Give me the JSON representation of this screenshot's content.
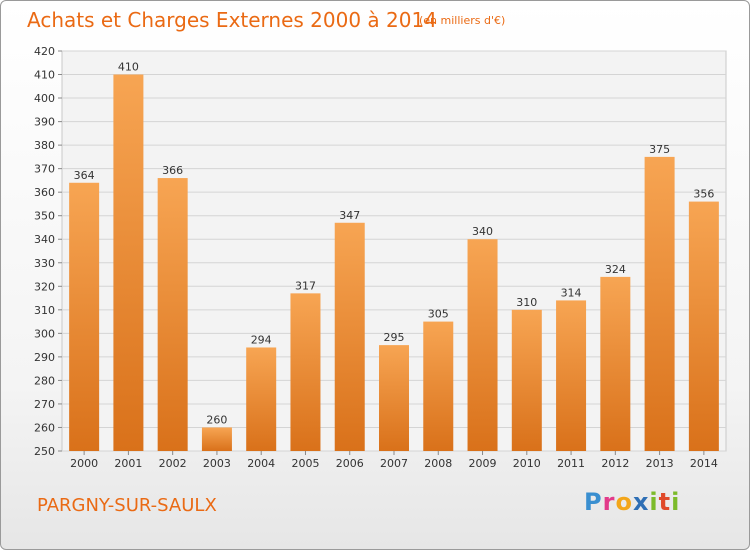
{
  "header": {
    "title": "Achats et Charges Externes 2000 à 2014",
    "subtitle": "(en milliers d'€)"
  },
  "footer": {
    "commune": "PARGNY-SUR-SAULX",
    "logo": {
      "letters": [
        "P",
        "r",
        "o",
        "x",
        "i",
        "t",
        "i"
      ]
    }
  },
  "colors": {
    "accent": "#ea6a14",
    "bar_top": "#f7a553",
    "bar_bottom": "#d9711a",
    "logo_letters": [
      "#3a8fd0",
      "#e23b8a",
      "#f3a61a",
      "#2f6fb5",
      "#7cbb2a",
      "#e04a2a",
      "#7cbb2a"
    ]
  },
  "chart_data": {
    "type": "bar",
    "categories": [
      "2000",
      "2001",
      "2002",
      "2003",
      "2004",
      "2005",
      "2006",
      "2007",
      "2008",
      "2009",
      "2010",
      "2011",
      "2012",
      "2013",
      "2014"
    ],
    "values": [
      364,
      410,
      366,
      260,
      294,
      317,
      347,
      295,
      305,
      340,
      310,
      314,
      324,
      375,
      356
    ],
    "title": "Achats et Charges Externes 2000 à 2014",
    "ylim": [
      250,
      420
    ],
    "yticks": [
      250,
      260,
      270,
      280,
      290,
      300,
      310,
      320,
      330,
      340,
      350,
      360,
      370,
      380,
      390,
      400,
      410,
      420
    ],
    "grid": true
  }
}
